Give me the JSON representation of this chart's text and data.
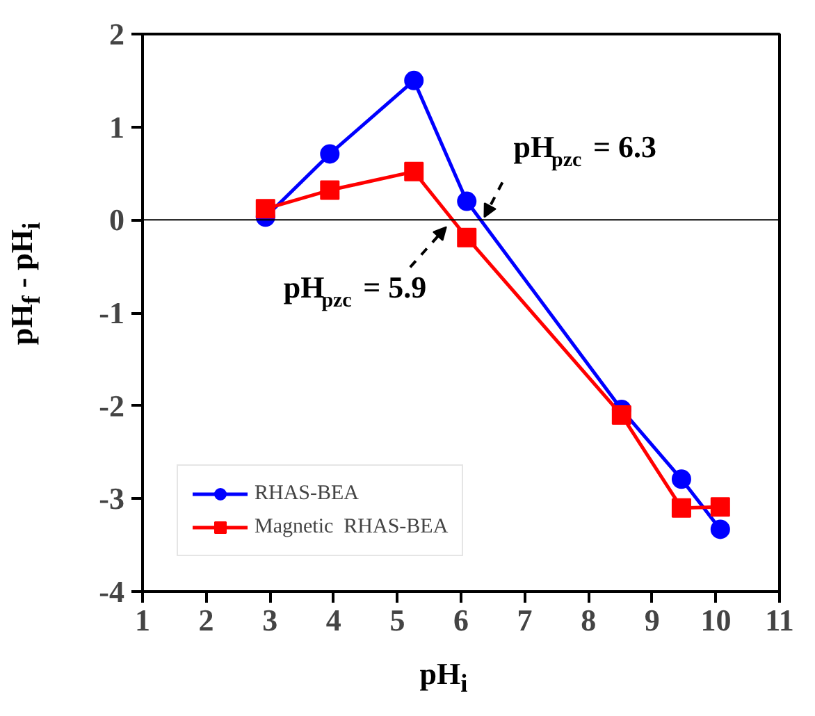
{
  "chart_data": {
    "type": "line",
    "xlabel": "pH$_{i}$",
    "ylabel": "pH$_{f}$ - pH$_{i}$",
    "x": [
      2.93,
      3.94,
      5.26,
      6.09,
      8.52,
      9.46,
      10.07
    ],
    "series": [
      {
        "name": "RHAS-BEA",
        "color": "#0000ff",
        "marker": "circle",
        "values": [
          0.03,
          0.71,
          1.5,
          0.2,
          -2.04,
          -2.79,
          -3.33
        ]
      },
      {
        "name": "Magnetic  RHAS-BEA",
        "color": "#ff0000",
        "marker": "square",
        "values": [
          0.12,
          0.32,
          0.52,
          -0.19,
          -2.1,
          -3.1,
          -3.09
        ]
      }
    ],
    "xlim": [
      1,
      11
    ],
    "xticks": [
      1,
      2,
      3,
      4,
      5,
      6,
      7,
      8,
      9,
      10,
      11
    ],
    "ylim": [
      -4,
      2
    ],
    "yticks": [
      -4,
      -3,
      -2,
      -1,
      0,
      1,
      2
    ],
    "ref_lines": [
      {
        "axis": "y",
        "value": 0,
        "color": "#000000"
      }
    ],
    "annotations": [
      {
        "text": "pH$_{pzc}$ = 6.3",
        "x": 6.3,
        "y": 0
      },
      {
        "text": "pH$_{pzc}$ = 5.9",
        "x": 5.9,
        "y": 0
      }
    ],
    "legend": "bottom left",
    "grid": false,
    "line_style": "solid"
  }
}
